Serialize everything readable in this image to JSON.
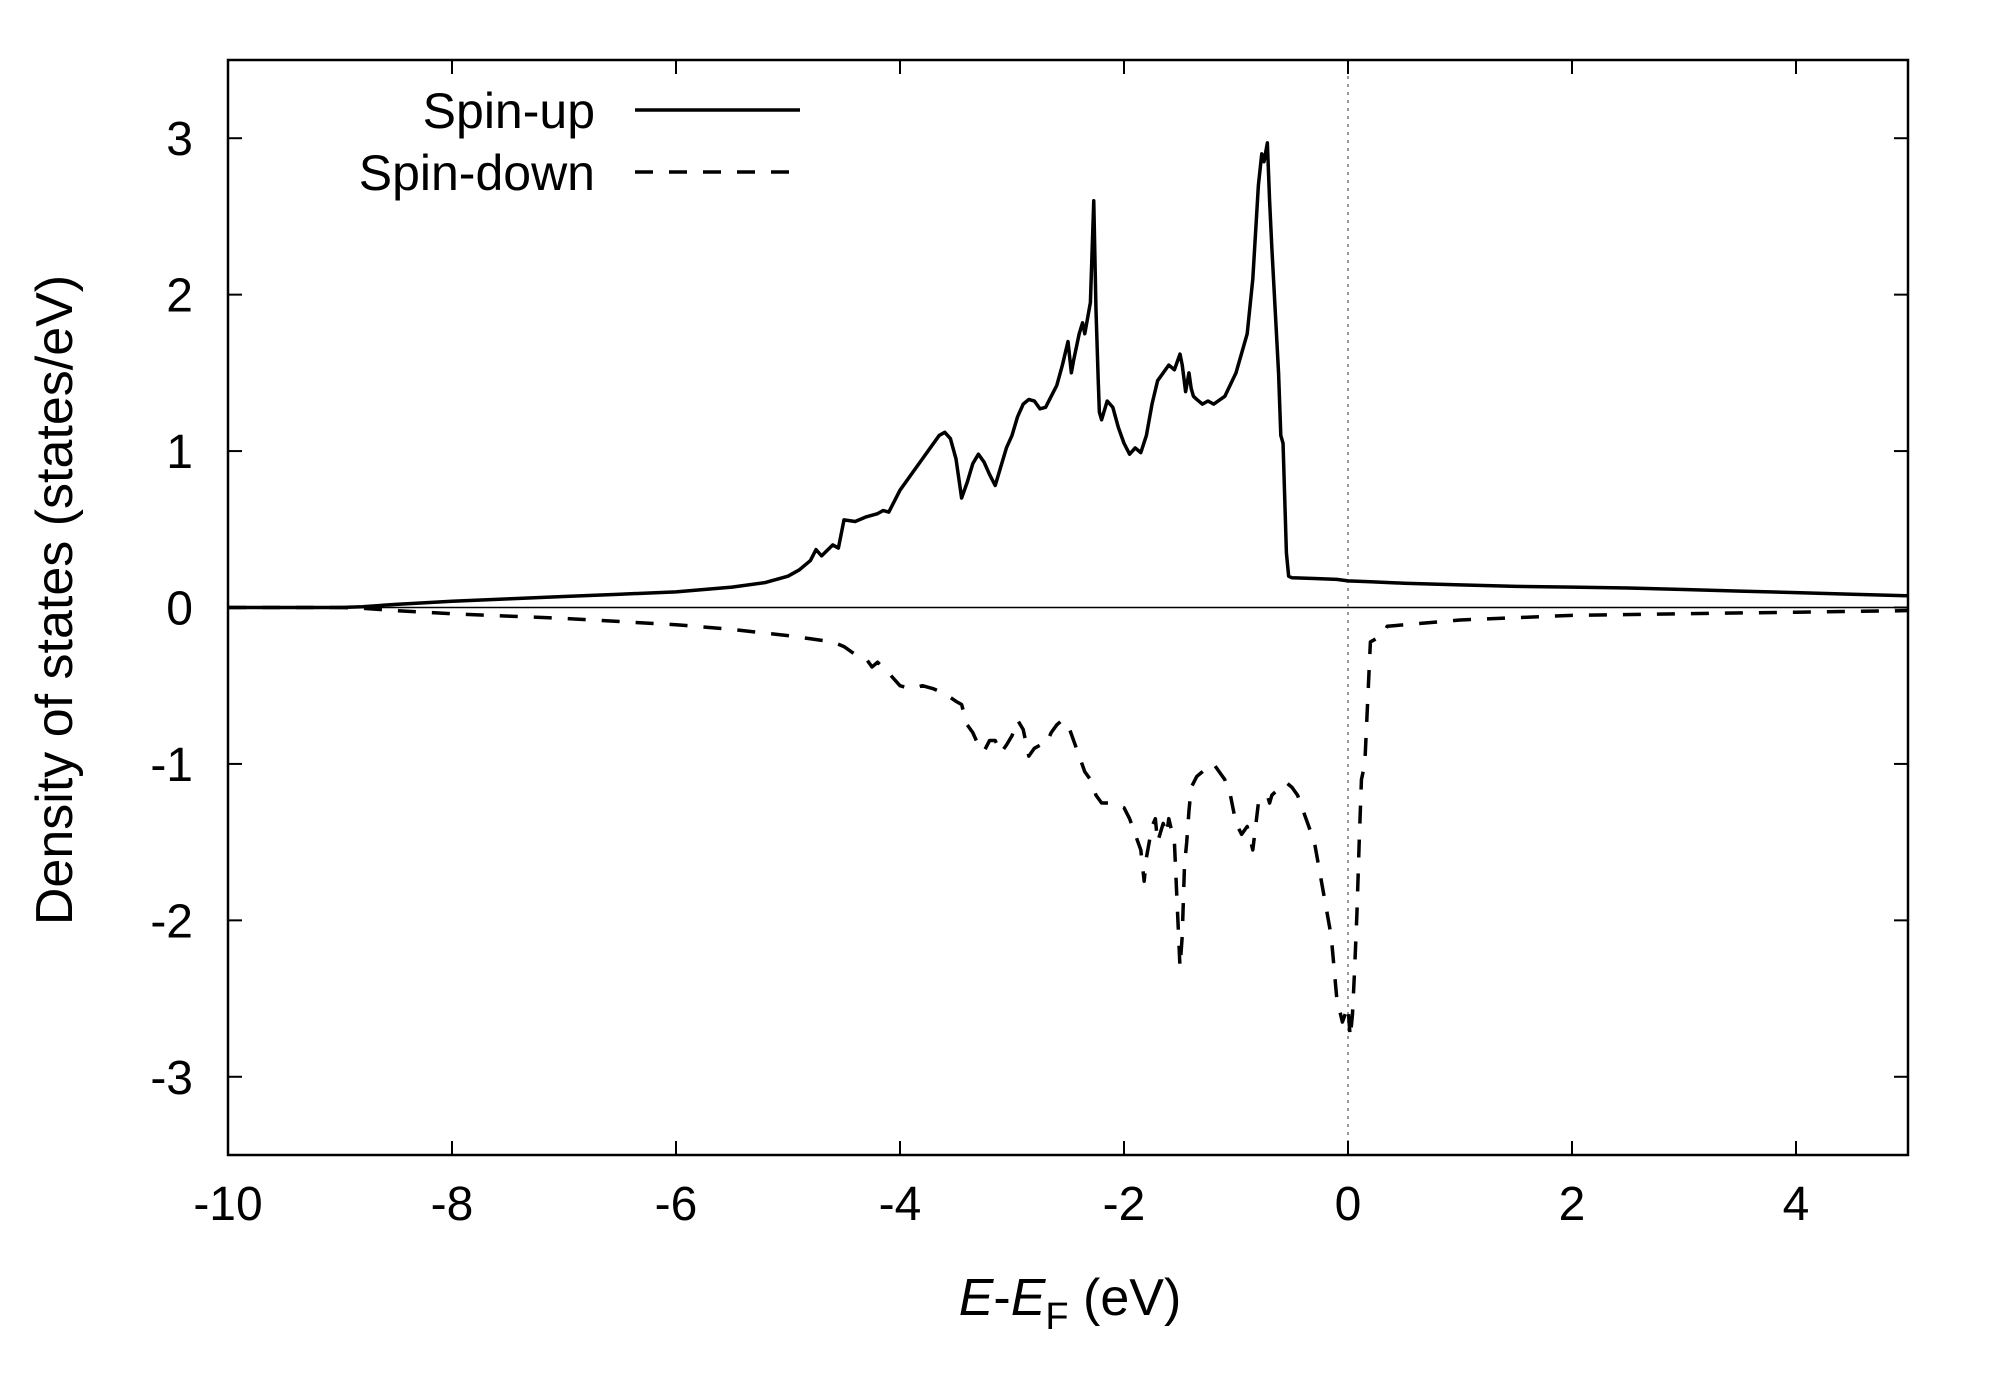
{
  "chart_data": {
    "type": "line",
    "xlabel_parts": {
      "e": "E",
      "dash": "-",
      "ef": "E",
      "sub": "F",
      "unit": " (eV)"
    },
    "ylabel": "Density of states (states/eV)",
    "xlim": [
      -10,
      5
    ],
    "ylim": [
      -3.5,
      3.5
    ],
    "xticks": [
      -10,
      -8,
      -6,
      -4,
      -2,
      0,
      2,
      4
    ],
    "xtick_labels": [
      "-10",
      "-8",
      "-6",
      "-4",
      "-2",
      "0",
      "2",
      "4"
    ],
    "yticks": [
      -3,
      -2,
      -1,
      0,
      1,
      2,
      3
    ],
    "ytick_labels": [
      "-3",
      "-2",
      "-1",
      "0",
      "1",
      "2",
      "3"
    ],
    "grid": false,
    "legend_position": "top-left",
    "reference_lines": {
      "zero_y": 0,
      "fermi_x": 0
    },
    "series": [
      {
        "name": "Spin-up",
        "style": "solid",
        "x": [
          -10,
          -9,
          -8.8,
          -8.5,
          -8,
          -7.5,
          -7,
          -6.5,
          -6,
          -5.5,
          -5.2,
          -5.0,
          -4.9,
          -4.8,
          -4.75,
          -4.7,
          -4.6,
          -4.55,
          -4.5,
          -4.4,
          -4.3,
          -4.2,
          -4.15,
          -4.1,
          -4.0,
          -3.9,
          -3.8,
          -3.75,
          -3.7,
          -3.65,
          -3.6,
          -3.55,
          -3.5,
          -3.45,
          -3.4,
          -3.35,
          -3.3,
          -3.25,
          -3.2,
          -3.15,
          -3.1,
          -3.05,
          -3.0,
          -2.95,
          -2.9,
          -2.85,
          -2.8,
          -2.75,
          -2.7,
          -2.65,
          -2.6,
          -2.55,
          -2.5,
          -2.47,
          -2.45,
          -2.4,
          -2.37,
          -2.35,
          -2.3,
          -2.27,
          -2.25,
          -2.23,
          -2.22,
          -2.2,
          -2.15,
          -2.1,
          -2.05,
          -2.0,
          -1.95,
          -1.9,
          -1.85,
          -1.8,
          -1.75,
          -1.7,
          -1.65,
          -1.6,
          -1.55,
          -1.5,
          -1.48,
          -1.45,
          -1.42,
          -1.4,
          -1.38,
          -1.35,
          -1.3,
          -1.25,
          -1.2,
          -1.1,
          -1.0,
          -0.9,
          -0.85,
          -0.8,
          -0.77,
          -0.75,
          -0.72,
          -0.7,
          -0.68,
          -0.65,
          -0.62,
          -0.6,
          -0.58,
          -0.55,
          -0.53,
          -0.5,
          -0.3,
          -0.1,
          0,
          0.2,
          0.5,
          1.0,
          1.5,
          2.0,
          2.5,
          3.0,
          3.5,
          4.0,
          4.5,
          5.0
        ],
        "y": [
          0,
          0,
          0.005,
          0.02,
          0.04,
          0.055,
          0.07,
          0.085,
          0.1,
          0.13,
          0.16,
          0.2,
          0.24,
          0.3,
          0.37,
          0.33,
          0.4,
          0.38,
          0.56,
          0.55,
          0.58,
          0.6,
          0.62,
          0.61,
          0.75,
          0.85,
          0.95,
          1.0,
          1.05,
          1.1,
          1.12,
          1.08,
          0.95,
          0.7,
          0.8,
          0.92,
          0.98,
          0.93,
          0.85,
          0.78,
          0.9,
          1.02,
          1.1,
          1.22,
          1.3,
          1.33,
          1.32,
          1.27,
          1.28,
          1.35,
          1.42,
          1.55,
          1.7,
          1.5,
          1.58,
          1.75,
          1.82,
          1.75,
          1.95,
          2.6,
          1.9,
          1.45,
          1.25,
          1.2,
          1.32,
          1.28,
          1.15,
          1.05,
          0.98,
          1.02,
          0.99,
          1.1,
          1.3,
          1.45,
          1.5,
          1.55,
          1.52,
          1.62,
          1.55,
          1.38,
          1.5,
          1.4,
          1.35,
          1.33,
          1.3,
          1.32,
          1.3,
          1.35,
          1.5,
          1.75,
          2.1,
          2.7,
          2.9,
          2.85,
          2.97,
          2.6,
          2.3,
          1.9,
          1.5,
          1.1,
          1.05,
          0.35,
          0.2,
          0.19,
          0.185,
          0.18,
          0.17,
          0.165,
          0.155,
          0.145,
          0.135,
          0.13,
          0.125,
          0.115,
          0.105,
          0.095,
          0.085,
          0.075
        ]
      },
      {
        "name": "Spin-down",
        "style": "dashed",
        "x": [
          -10,
          -9,
          -8.8,
          -8.5,
          -8,
          -7.5,
          -7,
          -6.5,
          -6,
          -5.5,
          -5.0,
          -4.8,
          -4.6,
          -4.5,
          -4.4,
          -4.3,
          -4.25,
          -4.2,
          -4.1,
          -4.0,
          -3.9,
          -3.8,
          -3.7,
          -3.6,
          -3.5,
          -3.45,
          -3.4,
          -3.35,
          -3.3,
          -3.25,
          -3.2,
          -3.15,
          -3.1,
          -3.05,
          -3.0,
          -2.95,
          -2.9,
          -2.85,
          -2.8,
          -2.75,
          -2.7,
          -2.65,
          -2.6,
          -2.55,
          -2.5,
          -2.45,
          -2.4,
          -2.35,
          -2.3,
          -2.25,
          -2.2,
          -2.1,
          -2.0,
          -1.95,
          -1.9,
          -1.85,
          -1.82,
          -1.8,
          -1.75,
          -1.72,
          -1.7,
          -1.65,
          -1.62,
          -1.6,
          -1.55,
          -1.5,
          -1.48,
          -1.46,
          -1.44,
          -1.42,
          -1.4,
          -1.35,
          -1.3,
          -1.25,
          -1.2,
          -1.15,
          -1.1,
          -1.05,
          -1.0,
          -0.95,
          -0.9,
          -0.85,
          -0.8,
          -0.75,
          -0.72,
          -0.7,
          -0.68,
          -0.65,
          -0.6,
          -0.55,
          -0.5,
          -0.45,
          -0.4,
          -0.35,
          -0.3,
          -0.25,
          -0.2,
          -0.15,
          -0.1,
          -0.05,
          0,
          0.02,
          0.04,
          0.06,
          0.08,
          0.1,
          0.12,
          0.15,
          0.2,
          0.25,
          0.3,
          0.33,
          0.35,
          1.0,
          2.0,
          3.0,
          4.0,
          5.0
        ],
        "y": [
          0,
          0,
          -0.005,
          -0.02,
          -0.04,
          -0.055,
          -0.07,
          -0.09,
          -0.11,
          -0.14,
          -0.18,
          -0.2,
          -0.22,
          -0.25,
          -0.3,
          -0.33,
          -0.38,
          -0.35,
          -0.42,
          -0.5,
          -0.52,
          -0.5,
          -0.52,
          -0.55,
          -0.6,
          -0.62,
          -0.75,
          -0.8,
          -0.88,
          -0.92,
          -0.85,
          -0.85,
          -0.93,
          -0.88,
          -0.82,
          -0.72,
          -0.78,
          -0.95,
          -0.9,
          -0.88,
          -0.88,
          -0.8,
          -0.75,
          -0.72,
          -0.75,
          -0.85,
          -0.95,
          -1.05,
          -1.1,
          -1.2,
          -1.25,
          -1.25,
          -1.28,
          -1.35,
          -1.45,
          -1.55,
          -1.75,
          -1.6,
          -1.4,
          -1.35,
          -1.5,
          -1.38,
          -1.45,
          -1.35,
          -1.5,
          -2.3,
          -2.1,
          -1.65,
          -1.5,
          -1.3,
          -1.15,
          -1.08,
          -1.05,
          -1.02,
          -1.0,
          -1.05,
          -1.1,
          -1.2,
          -1.38,
          -1.45,
          -1.4,
          -1.55,
          -1.25,
          -1.22,
          -1.2,
          -1.25,
          -1.2,
          -1.18,
          -1.15,
          -1.12,
          -1.15,
          -1.2,
          -1.3,
          -1.4,
          -1.5,
          -1.7,
          -1.9,
          -2.1,
          -2.5,
          -2.65,
          -2.55,
          -2.75,
          -2.6,
          -2.3,
          -1.95,
          -1.5,
          -1.1,
          -1.0,
          -0.22,
          -0.2,
          -0.18,
          -0.15,
          -0.12,
          -0.08,
          -0.05,
          -0.04,
          -0.03,
          -0.02
        ]
      }
    ]
  }
}
